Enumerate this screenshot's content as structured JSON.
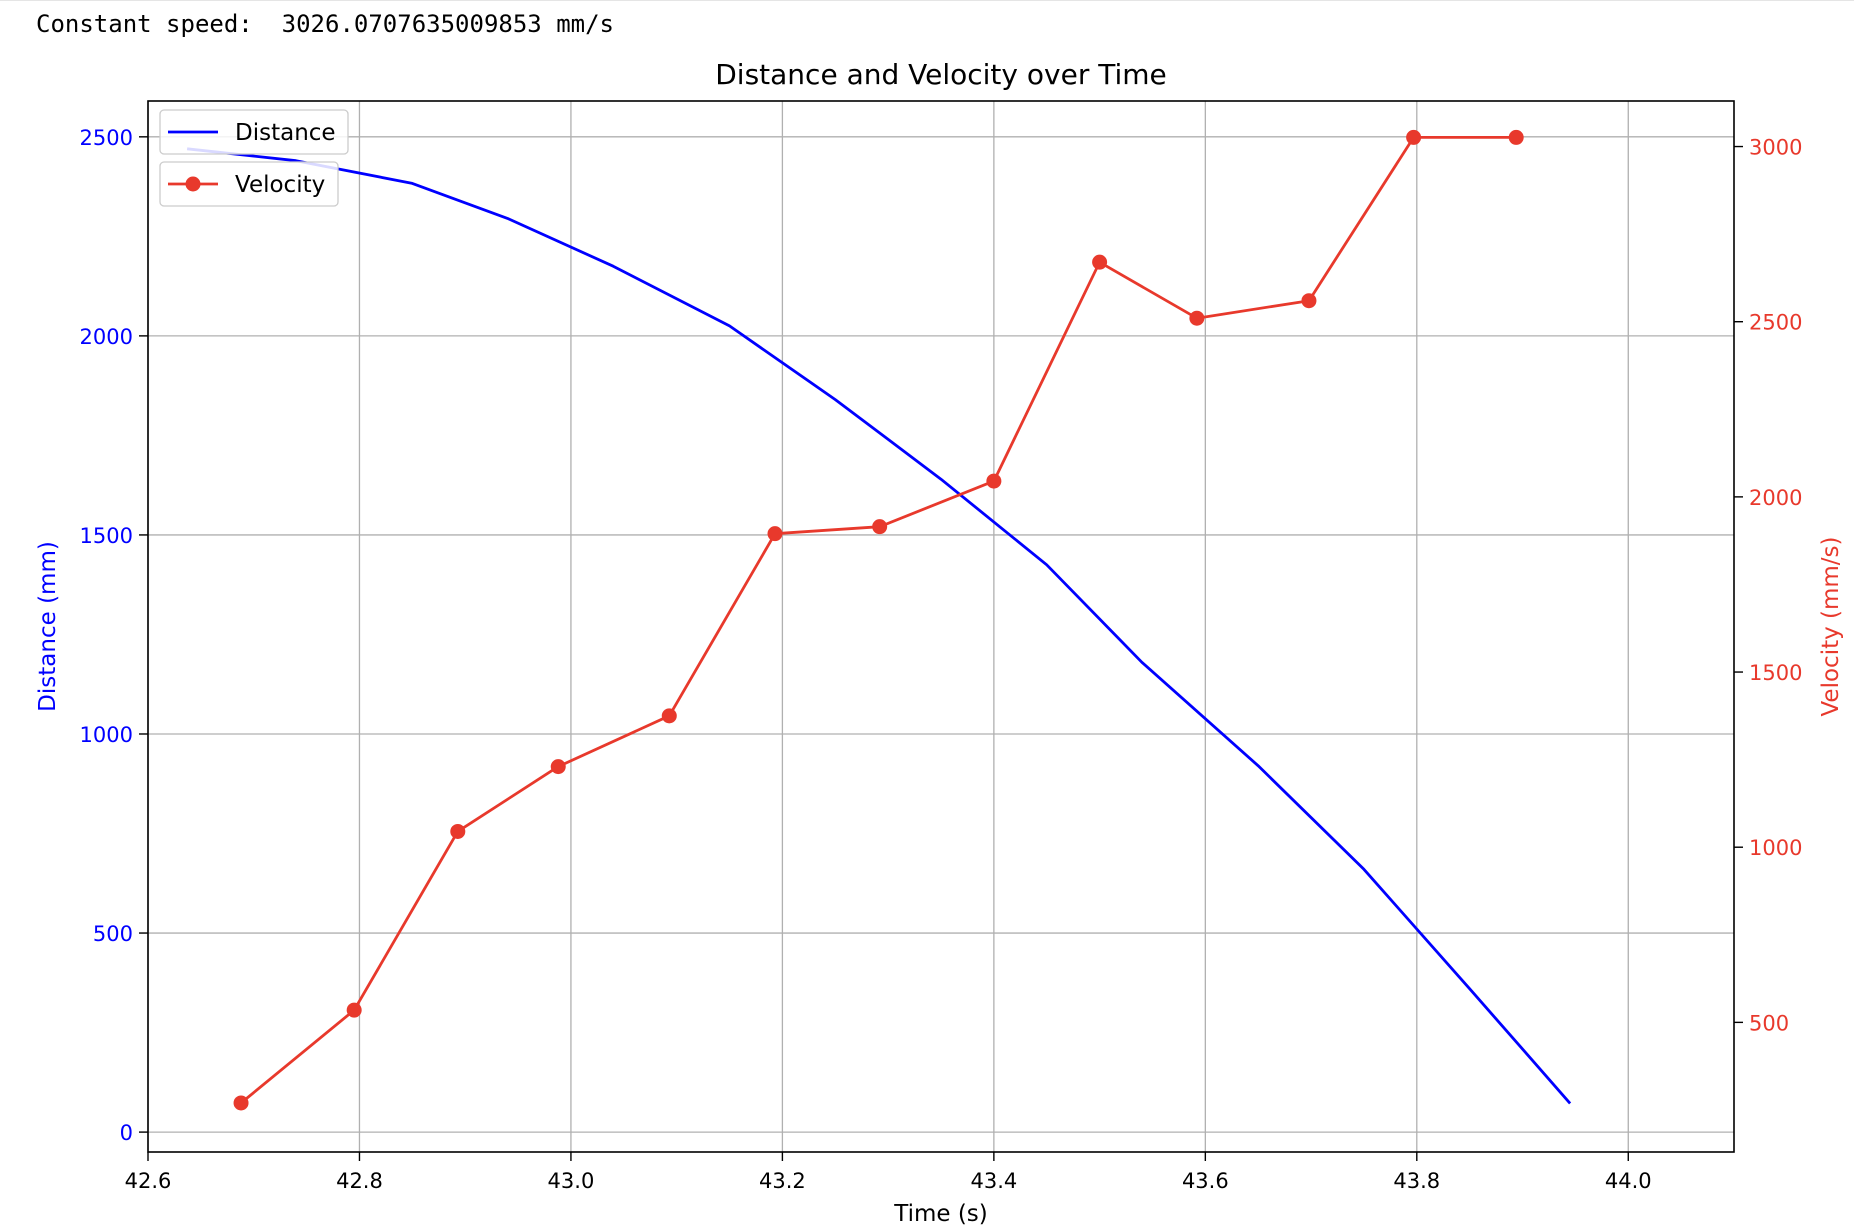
{
  "output": {
    "label": "Constant speed:",
    "value": "3026.0707635009853",
    "unit": "mm/s"
  },
  "colors": {
    "distance": "#0000ff",
    "velocity": "#e8392c",
    "grid": "#b0b0b0",
    "axis": "#000000"
  },
  "chart_data": {
    "type": "line",
    "title": "Distance and Velocity over Time",
    "xlabel": "Time (s)",
    "ylabel_left": "Distance (mm)",
    "ylabel_right": "Velocity (mm/s)",
    "xlim": [
      42.6,
      44.1
    ],
    "ylim_left": [
      -50,
      2590
    ],
    "ylim_right": [
      130,
      3130
    ],
    "x_ticks": [
      "42.6",
      "42.8",
      "43.0",
      "43.2",
      "43.4",
      "43.6",
      "43.8",
      "44.0"
    ],
    "x_tick_values": [
      42.6,
      42.8,
      43.0,
      43.2,
      43.4,
      43.6,
      43.8,
      44.0
    ],
    "y_left_ticks": [
      "0",
      "500",
      "1000",
      "1500",
      "2000",
      "2500"
    ],
    "y_left_tick_values": [
      0,
      500,
      1000,
      1500,
      2000,
      2500
    ],
    "y_right_ticks": [
      "500",
      "1000",
      "1500",
      "2000",
      "2500",
      "3000"
    ],
    "y_right_tick_values": [
      500,
      1000,
      1500,
      2000,
      2500,
      3000
    ],
    "grid": true,
    "legend_placement": "top-left",
    "series": [
      {
        "name": "Distance",
        "axis": "left",
        "marker": "none",
        "x": [
          42.637,
          42.74,
          42.85,
          42.94,
          43.04,
          43.15,
          43.25,
          43.35,
          43.45,
          43.54,
          43.65,
          43.75,
          43.85,
          43.945
        ],
        "y": [
          2470,
          2440,
          2383,
          2295,
          2175,
          2025,
          1840,
          1640,
          1425,
          1180,
          920,
          660,
          360,
          72
        ]
      },
      {
        "name": "Velocity",
        "axis": "right",
        "marker": "circle",
        "x": [
          42.688,
          42.795,
          42.893,
          42.988,
          43.093,
          43.193,
          43.292,
          43.4,
          43.5,
          43.592,
          43.698,
          43.797,
          43.894
        ],
        "y": [
          270,
          535,
          1045,
          1230,
          1375,
          1895,
          1915,
          2045,
          2670,
          2510,
          2560,
          3026,
          3026
        ]
      }
    ]
  }
}
